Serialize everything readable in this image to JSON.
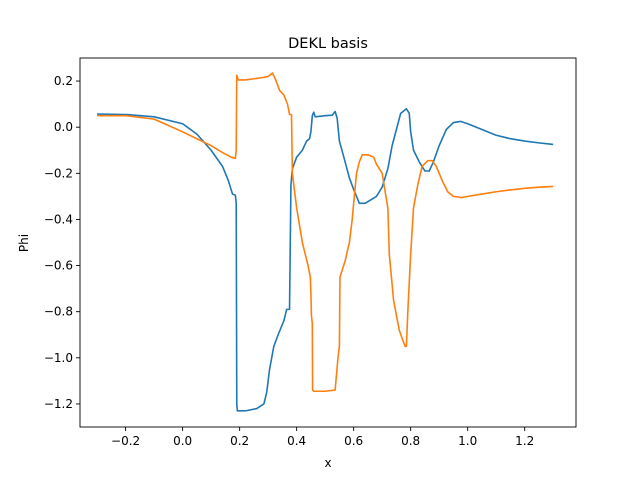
{
  "chart_data": {
    "type": "line",
    "title": "DEKL basis",
    "xlabel": "x",
    "ylabel": "Phi",
    "xlim": [
      -0.36,
      1.38
    ],
    "ylim": [
      -1.3,
      0.3
    ],
    "grid": false,
    "legend": "none",
    "x_ticks": [
      -0.2,
      0.0,
      0.2,
      0.4,
      0.6,
      0.8,
      1.0,
      1.2
    ],
    "x_tick_labels": [
      "−0.2",
      "0.0",
      "0.2",
      "0.4",
      "0.6",
      "0.8",
      "1.0",
      "1.2"
    ],
    "y_ticks": [
      0.2,
      0.0,
      -0.2,
      -0.4,
      -0.6,
      -0.8,
      -1.0,
      -1.2
    ],
    "y_tick_labels": [
      "0.2",
      "0.0",
      "−0.2",
      "−0.4",
      "−0.6",
      "−0.8",
      "−1.0",
      "−1.2"
    ],
    "series": [
      {
        "color": "#1f77b4",
        "points": [
          [
            -0.3,
            0.057
          ],
          [
            -0.2,
            0.055
          ],
          [
            -0.1,
            0.045
          ],
          [
            0.0,
            0.015
          ],
          [
            0.05,
            -0.03
          ],
          [
            0.1,
            -0.1
          ],
          [
            0.14,
            -0.17
          ],
          [
            0.16,
            -0.23
          ],
          [
            0.175,
            -0.29
          ],
          [
            0.185,
            -0.295
          ],
          [
            0.188,
            -0.33
          ],
          [
            0.19,
            -1.2
          ],
          [
            0.192,
            -1.23
          ],
          [
            0.22,
            -1.23
          ],
          [
            0.26,
            -1.22
          ],
          [
            0.285,
            -1.2
          ],
          [
            0.295,
            -1.15
          ],
          [
            0.305,
            -1.05
          ],
          [
            0.32,
            -0.95
          ],
          [
            0.335,
            -0.9
          ],
          [
            0.355,
            -0.84
          ],
          [
            0.365,
            -0.79
          ],
          [
            0.375,
            -0.79
          ],
          [
            0.38,
            -0.25
          ],
          [
            0.385,
            -0.18
          ],
          [
            0.4,
            -0.13
          ],
          [
            0.42,
            -0.1
          ],
          [
            0.435,
            -0.06
          ],
          [
            0.445,
            -0.05
          ],
          [
            0.45,
            -0.02
          ],
          [
            0.455,
            0.05
          ],
          [
            0.46,
            0.065
          ],
          [
            0.465,
            0.045
          ],
          [
            0.5,
            0.05
          ],
          [
            0.525,
            0.052
          ],
          [
            0.535,
            0.068
          ],
          [
            0.542,
            0.04
          ],
          [
            0.55,
            -0.06
          ],
          [
            0.57,
            -0.15
          ],
          [
            0.585,
            -0.22
          ],
          [
            0.6,
            -0.27
          ],
          [
            0.61,
            -0.3
          ],
          [
            0.62,
            -0.33
          ],
          [
            0.64,
            -0.33
          ],
          [
            0.68,
            -0.3
          ],
          [
            0.7,
            -0.26
          ],
          [
            0.72,
            -0.18
          ],
          [
            0.735,
            -0.08
          ],
          [
            0.75,
            -0.01
          ],
          [
            0.765,
            0.06
          ],
          [
            0.785,
            0.08
          ],
          [
            0.795,
            0.06
          ],
          [
            0.8,
            -0.02
          ],
          [
            0.81,
            -0.1
          ],
          [
            0.83,
            -0.15
          ],
          [
            0.85,
            -0.19
          ],
          [
            0.865,
            -0.19
          ],
          [
            0.88,
            -0.15
          ],
          [
            0.9,
            -0.08
          ],
          [
            0.925,
            -0.01
          ],
          [
            0.95,
            0.02
          ],
          [
            0.975,
            0.025
          ],
          [
            1.0,
            0.015
          ],
          [
            1.05,
            -0.01
          ],
          [
            1.1,
            -0.035
          ],
          [
            1.15,
            -0.05
          ],
          [
            1.2,
            -0.06
          ],
          [
            1.25,
            -0.068
          ],
          [
            1.3,
            -0.075
          ]
        ]
      },
      {
        "color": "#ff7f0e",
        "points": [
          [
            -0.3,
            0.05
          ],
          [
            -0.2,
            0.05
          ],
          [
            -0.1,
            0.035
          ],
          [
            0.0,
            -0.02
          ],
          [
            0.05,
            -0.05
          ],
          [
            0.1,
            -0.08
          ],
          [
            0.14,
            -0.11
          ],
          [
            0.17,
            -0.13
          ],
          [
            0.185,
            -0.135
          ],
          [
            0.188,
            -0.1
          ],
          [
            0.19,
            0.225
          ],
          [
            0.195,
            0.205
          ],
          [
            0.22,
            0.205
          ],
          [
            0.25,
            0.21
          ],
          [
            0.28,
            0.215
          ],
          [
            0.3,
            0.22
          ],
          [
            0.315,
            0.235
          ],
          [
            0.325,
            0.21
          ],
          [
            0.34,
            0.16
          ],
          [
            0.355,
            0.14
          ],
          [
            0.368,
            0.1
          ],
          [
            0.375,
            0.055
          ],
          [
            0.382,
            0.055
          ],
          [
            0.385,
            -0.2
          ],
          [
            0.4,
            -0.35
          ],
          [
            0.42,
            -0.5
          ],
          [
            0.44,
            -0.6
          ],
          [
            0.448,
            -0.65
          ],
          [
            0.45,
            -0.72
          ],
          [
            0.452,
            -0.82
          ],
          [
            0.455,
            -0.85
          ],
          [
            0.456,
            -1.14
          ],
          [
            0.46,
            -1.145
          ],
          [
            0.5,
            -1.145
          ],
          [
            0.535,
            -1.14
          ],
          [
            0.545,
            -1.0
          ],
          [
            0.55,
            -0.95
          ],
          [
            0.552,
            -0.65
          ],
          [
            0.57,
            -0.58
          ],
          [
            0.585,
            -0.5
          ],
          [
            0.595,
            -0.4
          ],
          [
            0.6,
            -0.33
          ],
          [
            0.61,
            -0.2
          ],
          [
            0.62,
            -0.15
          ],
          [
            0.63,
            -0.12
          ],
          [
            0.65,
            -0.12
          ],
          [
            0.67,
            -0.13
          ],
          [
            0.68,
            -0.16
          ],
          [
            0.7,
            -0.2
          ],
          [
            0.72,
            -0.35
          ],
          [
            0.725,
            -0.55
          ],
          [
            0.74,
            -0.75
          ],
          [
            0.76,
            -0.88
          ],
          [
            0.78,
            -0.95
          ],
          [
            0.785,
            -0.95
          ],
          [
            0.79,
            -0.8
          ],
          [
            0.8,
            -0.55
          ],
          [
            0.81,
            -0.35
          ],
          [
            0.825,
            -0.25
          ],
          [
            0.84,
            -0.17
          ],
          [
            0.86,
            -0.145
          ],
          [
            0.875,
            -0.145
          ],
          [
            0.89,
            -0.17
          ],
          [
            0.91,
            -0.23
          ],
          [
            0.93,
            -0.28
          ],
          [
            0.95,
            -0.3
          ],
          [
            0.98,
            -0.305
          ],
          [
            1.0,
            -0.3
          ],
          [
            1.05,
            -0.29
          ],
          [
            1.1,
            -0.28
          ],
          [
            1.15,
            -0.272
          ],
          [
            1.2,
            -0.265
          ],
          [
            1.25,
            -0.26
          ],
          [
            1.3,
            -0.257
          ]
        ]
      }
    ]
  }
}
